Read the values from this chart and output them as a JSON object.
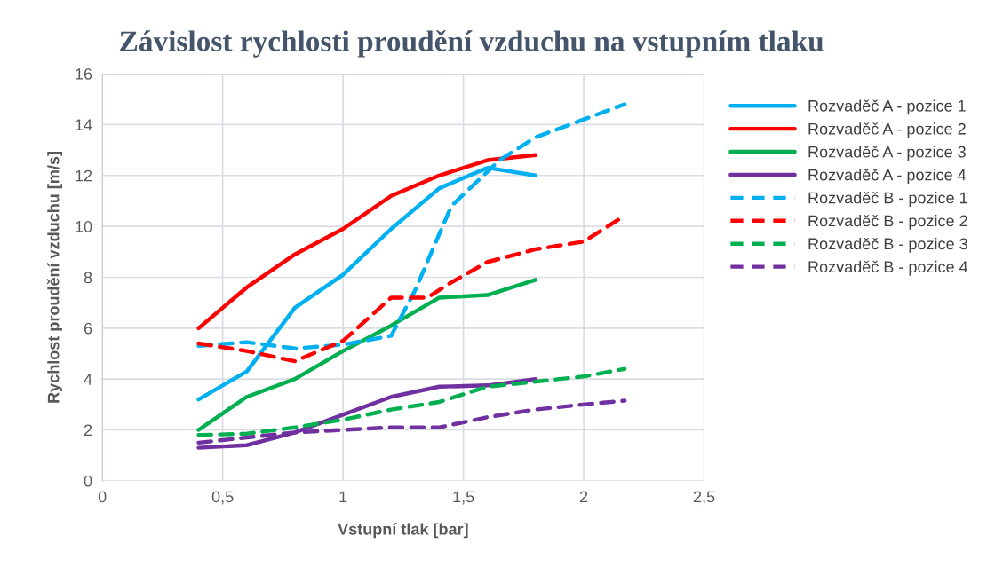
{
  "chart_data": {
    "type": "line",
    "title": "Závislost rychlosti proudění vzduchu na vstupním tlaku",
    "xlabel": "Vstupní tlak [bar]",
    "ylabel": "Rychlost proudění vzduchu [m/s]",
    "xlim": [
      0,
      2.5
    ],
    "xticks": [
      0,
      {
        "value": 0.5,
        "label": "0,5"
      },
      1,
      {
        "value": 1.5,
        "label": "1,5"
      },
      2,
      {
        "value": 2.5,
        "label": "2,5"
      }
    ],
    "ylim": [
      0,
      16
    ],
    "yticks": [
      0,
      2,
      4,
      6,
      8,
      10,
      12,
      14,
      16
    ],
    "grid": true,
    "legend": "right",
    "marker": "none",
    "series": [
      {
        "name": "Rozvaděč A - pozice 1",
        "color": "#00b0f0",
        "line_style": "solid",
        "x": [
          0.4,
          0.6,
          0.8,
          1.0,
          1.2,
          1.4,
          1.6,
          1.8
        ],
        "values": [
          3.2,
          4.3,
          6.8,
          8.1,
          9.9,
          11.5,
          12.3,
          12.0
        ]
      },
      {
        "name": "Rozvaděč A - pozice 2",
        "color": "#ff0000",
        "line_style": "solid",
        "x": [
          0.4,
          0.6,
          0.8,
          1.0,
          1.2,
          1.4,
          1.6,
          1.8
        ],
        "values": [
          6.0,
          7.6,
          8.9,
          9.9,
          11.2,
          12.0,
          12.6,
          12.8
        ]
      },
      {
        "name": "Rozvaděč A - pozice 3",
        "color": "#00b050",
        "line_style": "solid",
        "x": [
          0.4,
          0.6,
          0.8,
          1.0,
          1.2,
          1.4,
          1.6,
          1.8
        ],
        "values": [
          2.0,
          3.3,
          4.0,
          5.1,
          6.1,
          7.2,
          7.3,
          7.9
        ]
      },
      {
        "name": "Rozvaděč A - pozice 4",
        "color": "#7030a0",
        "line_style": "solid",
        "x": [
          0.4,
          0.6,
          0.8,
          1.0,
          1.2,
          1.4,
          1.6,
          1.8
        ],
        "values": [
          1.3,
          1.4,
          1.9,
          2.6,
          3.3,
          3.7,
          3.75,
          4.0
        ]
      },
      {
        "name": "Rozvaděč B - pozice 1",
        "color": "#00b0f0",
        "line_style": "dashed",
        "x": [
          0.4,
          0.6,
          0.8,
          1.0,
          1.2,
          1.3,
          1.45,
          1.65,
          1.8,
          2.0,
          2.17
        ],
        "values": [
          5.3,
          5.45,
          5.2,
          5.35,
          5.7,
          7.5,
          10.8,
          12.6,
          13.5,
          14.2,
          14.8
        ]
      },
      {
        "name": "Rozvaděč B - pozice 2",
        "color": "#ff0000",
        "line_style": "dashed",
        "x": [
          0.4,
          0.6,
          0.8,
          1.0,
          1.2,
          1.35,
          1.45,
          1.6,
          1.8,
          2.0,
          2.15
        ],
        "values": [
          5.4,
          5.1,
          4.7,
          5.5,
          7.2,
          7.2,
          7.8,
          8.6,
          9.1,
          9.4,
          10.3
        ]
      },
      {
        "name": "Rozvaděč B - pozice 3",
        "color": "#00b050",
        "line_style": "dashed",
        "x": [
          0.4,
          0.6,
          0.8,
          1.0,
          1.2,
          1.4,
          1.6,
          1.8,
          2.0,
          2.17
        ],
        "values": [
          1.8,
          1.85,
          2.1,
          2.4,
          2.8,
          3.1,
          3.7,
          3.9,
          4.1,
          4.4
        ]
      },
      {
        "name": "Rozvaděč B - pozice 4",
        "color": "#7030a0",
        "line_style": "dashed",
        "x": [
          0.4,
          0.6,
          0.8,
          1.0,
          1.2,
          1.4,
          1.6,
          1.8,
          2.0,
          2.17
        ],
        "values": [
          1.5,
          1.7,
          1.9,
          2.0,
          2.1,
          2.1,
          2.5,
          2.8,
          3.0,
          3.15
        ]
      }
    ]
  }
}
